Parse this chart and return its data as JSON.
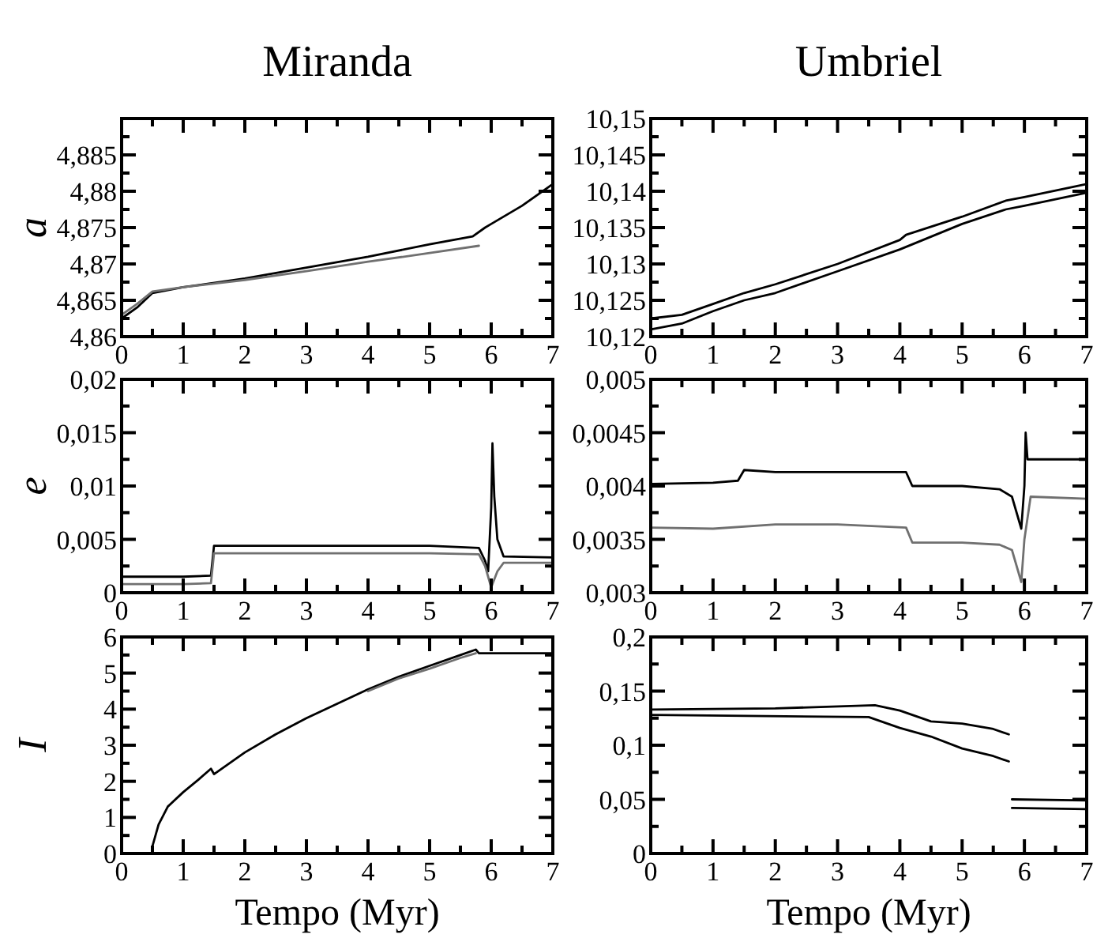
{
  "chart_data": [
    {
      "type": "line",
      "title": "Miranda",
      "ylabel": "a",
      "xlim": [
        0,
        7
      ],
      "xticks": [
        0,
        1,
        2,
        3,
        4,
        5,
        6,
        7
      ],
      "ylim": [
        4.86,
        4.89
      ],
      "yticks": [
        {
          "value": 4.86,
          "label": "4,86"
        },
        {
          "value": 4.865,
          "label": "4,865"
        },
        {
          "value": 4.87,
          "label": "4,87"
        },
        {
          "value": 4.875,
          "label": "4,875"
        },
        {
          "value": 4.88,
          "label": "4,88"
        },
        {
          "value": 4.885,
          "label": "4,885"
        },
        {
          "value": 4.89,
          "label": null
        }
      ],
      "series": [
        {
          "color": "#000000",
          "x": [
            0,
            0.25,
            0.5,
            1,
            2,
            3,
            4,
            5,
            5.7,
            5.9,
            6,
            6.5,
            7
          ],
          "values": [
            4.8625,
            4.864,
            4.866,
            4.8668,
            4.868,
            4.8695,
            4.871,
            4.8727,
            4.8738,
            4.875,
            4.8755,
            4.878,
            4.881
          ]
        },
        {
          "color": "#707070",
          "x": [
            0,
            0.25,
            0.5,
            1,
            2,
            3,
            4,
            5,
            5.8
          ],
          "values": [
            4.863,
            4.8645,
            4.8662,
            4.8668,
            4.8678,
            4.869,
            4.8703,
            4.8715,
            4.8725
          ]
        }
      ]
    },
    {
      "type": "line",
      "title": "Umbriel",
      "xlim": [
        0,
        7
      ],
      "xticks": [
        0,
        1,
        2,
        3,
        4,
        5,
        6,
        7
      ],
      "ylim": [
        10.12,
        10.15
      ],
      "yticks": [
        {
          "value": 10.12,
          "label": "10,12"
        },
        {
          "value": 10.125,
          "label": "10,125"
        },
        {
          "value": 10.13,
          "label": "10,13"
        },
        {
          "value": 10.135,
          "label": "10,135"
        },
        {
          "value": 10.14,
          "label": "10,14"
        },
        {
          "value": 10.145,
          "label": "10,145"
        },
        {
          "value": 10.15,
          "label": "10,15"
        }
      ],
      "series": [
        {
          "color": "#000000",
          "x": [
            0,
            0.5,
            1,
            1.5,
            2,
            3,
            4,
            4.1,
            5,
            5.7,
            6,
            7
          ],
          "values": [
            10.1225,
            10.123,
            10.1245,
            10.126,
            10.1272,
            10.13,
            10.1333,
            10.134,
            10.1365,
            10.1387,
            10.1392,
            10.141
          ]
        },
        {
          "color": "#000000",
          "x": [
            0,
            0.5,
            1,
            1.5,
            2,
            3,
            4,
            5,
            5.7,
            6,
            7
          ],
          "values": [
            10.121,
            10.1218,
            10.1235,
            10.125,
            10.126,
            10.129,
            10.132,
            10.1355,
            10.1375,
            10.138,
            10.1398
          ]
        }
      ]
    },
    {
      "type": "line",
      "ylabel": "e",
      "xlim": [
        0,
        7
      ],
      "xticks": [
        0,
        1,
        2,
        3,
        4,
        5,
        6,
        7
      ],
      "ylim": [
        0,
        0.02
      ],
      "yticks": [
        0,
        {
          "value": 0.005,
          "label": "0,005"
        },
        {
          "value": 0.01,
          "label": "0,01"
        },
        {
          "value": 0.015,
          "label": "0,015"
        },
        {
          "value": 0.02,
          "label": "0,02"
        }
      ],
      "series": [
        {
          "color": "#000000",
          "x": [
            0,
            1,
            1.45,
            1.5,
            3,
            5,
            5.8,
            5.9,
            5.95,
            6,
            6.02,
            6.05,
            6.1,
            6.2,
            7
          ],
          "values": [
            0.0015,
            0.0015,
            0.0016,
            0.0044,
            0.0044,
            0.0044,
            0.0042,
            0.003,
            0.002,
            0.008,
            0.014,
            0.009,
            0.005,
            0.0034,
            0.0033
          ]
        },
        {
          "color": "#707070",
          "x": [
            0,
            1,
            1.45,
            1.5,
            3,
            5,
            5.8,
            5.9,
            6,
            6.1,
            6.2,
            7
          ],
          "values": [
            0.0008,
            0.0008,
            0.0009,
            0.0037,
            0.0037,
            0.0037,
            0.0036,
            0.0025,
            0.0005,
            0.002,
            0.0028,
            0.0028
          ]
        }
      ]
    },
    {
      "type": "line",
      "xlim": [
        0,
        7
      ],
      "xticks": [
        0,
        1,
        2,
        3,
        4,
        5,
        6,
        7
      ],
      "ylim": [
        0.003,
        0.005
      ],
      "yticks": [
        {
          "value": 0.003,
          "label": "0,003"
        },
        {
          "value": 0.0035,
          "label": "0,0035"
        },
        {
          "value": 0.004,
          "label": "0,004"
        },
        {
          "value": 0.0045,
          "label": "0,0045"
        },
        {
          "value": 0.005,
          "label": "0,005"
        }
      ],
      "series": [
        {
          "color": "#000000",
          "x": [
            0,
            1,
            1.4,
            1.5,
            2,
            3,
            4.1,
            4.2,
            5,
            5.6,
            5.8,
            5.95,
            6,
            6.02,
            6.05,
            7
          ],
          "values": [
            0.00402,
            0.00403,
            0.00405,
            0.00415,
            0.00413,
            0.00413,
            0.00413,
            0.004,
            0.004,
            0.00397,
            0.0039,
            0.0036,
            0.004,
            0.0045,
            0.00425,
            0.00425
          ]
        },
        {
          "color": "#707070",
          "x": [
            0,
            1,
            2,
            3,
            4.1,
            4.2,
            5,
            5.6,
            5.8,
            5.95,
            6,
            6.1,
            7
          ],
          "values": [
            0.00361,
            0.0036,
            0.00364,
            0.00364,
            0.00361,
            0.00347,
            0.00347,
            0.00345,
            0.0034,
            0.0031,
            0.0035,
            0.0039,
            0.00388
          ]
        }
      ]
    },
    {
      "type": "line",
      "ylabel": "I",
      "xlabel": "Tempo (Myr)",
      "xlim": [
        0,
        7
      ],
      "xticks": [
        0,
        1,
        2,
        3,
        4,
        5,
        6,
        7
      ],
      "ylim": [
        0,
        6
      ],
      "yticks": [
        0,
        1,
        2,
        3,
        4,
        5,
        6
      ],
      "series": [
        {
          "color": "#000000",
          "x": [
            0.5,
            0.6,
            0.75,
            1,
            1.25,
            1.45,
            1.5,
            2,
            2.5,
            3,
            3.5,
            4,
            4.5,
            5,
            5.5,
            5.75,
            5.8,
            6,
            7
          ],
          "values": [
            0.2,
            0.8,
            1.3,
            1.7,
            2.05,
            2.35,
            2.2,
            2.8,
            3.3,
            3.75,
            4.15,
            4.55,
            4.9,
            5.2,
            5.5,
            5.65,
            5.55,
            5.55,
            5.55
          ]
        },
        {
          "color": "#707070",
          "x": [
            4,
            4.5,
            5,
            5.5,
            5.75
          ],
          "values": [
            4.5,
            4.85,
            5.12,
            5.42,
            5.55
          ]
        }
      ]
    },
    {
      "type": "line",
      "xlabel": "Tempo (Myr)",
      "xlim": [
        0,
        7
      ],
      "xticks": [
        0,
        1,
        2,
        3,
        4,
        5,
        6,
        7
      ],
      "ylim": [
        0,
        0.2
      ],
      "yticks": [
        0,
        {
          "value": 0.05,
          "label": "0,05"
        },
        {
          "value": 0.1,
          "label": "0,1"
        },
        {
          "value": 0.15,
          "label": "0,15"
        },
        {
          "value": 0.2,
          "label": "0,2"
        }
      ],
      "series": [
        {
          "color": "#000000",
          "x": [
            0,
            2,
            3.6,
            4,
            4.5,
            5,
            5.5,
            5.75,
            5.77,
            5.8,
            7
          ],
          "values": [
            0.133,
            0.134,
            0.137,
            0.132,
            0.122,
            0.12,
            0.115,
            0.11,
            null,
            0.05,
            0.049
          ]
        },
        {
          "color": "#000000",
          "x": [
            0,
            3.5,
            4,
            4.5,
            5,
            5.5,
            5.75,
            5.77,
            5.8,
            7
          ],
          "values": [
            0.128,
            0.126,
            0.116,
            0.108,
            0.097,
            0.09,
            0.085,
            null,
            0.042,
            0.041
          ]
        }
      ]
    }
  ]
}
